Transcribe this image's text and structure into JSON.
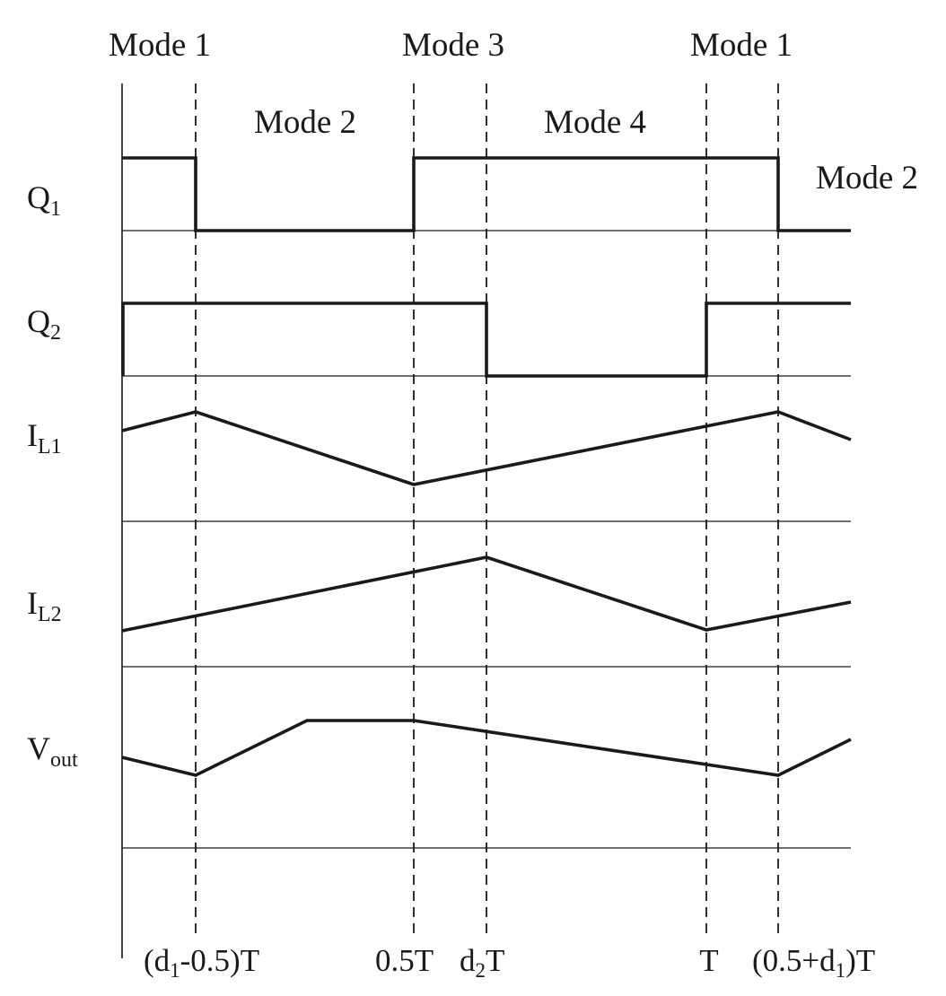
{
  "modes": {
    "top_left": "Mode 1",
    "top_mid": "Mode 3",
    "top_right": "Mode 1",
    "mid_left": "Mode 2",
    "mid_mid": "Mode 4",
    "far_right": "Mode 2"
  },
  "signals": {
    "q1": {
      "main": "Q",
      "sub": "1"
    },
    "q2": {
      "main": "Q",
      "sub": "2"
    },
    "il1": {
      "main": "I",
      "sub": "L1"
    },
    "il2": {
      "main": "I",
      "sub": "L2"
    },
    "vout": {
      "main": "V",
      "sub": "out"
    }
  },
  "time_labels": {
    "t1": {
      "pre": "(d",
      "sub": "1",
      "post": "-0.5)T"
    },
    "t2": {
      "text": "0.5T"
    },
    "t3": {
      "pre": "d",
      "sub": "2",
      "post": "T"
    },
    "t4": {
      "text": "T"
    },
    "t5": {
      "pre": "(0.5+d",
      "sub": "1",
      "post": ")T"
    }
  }
}
